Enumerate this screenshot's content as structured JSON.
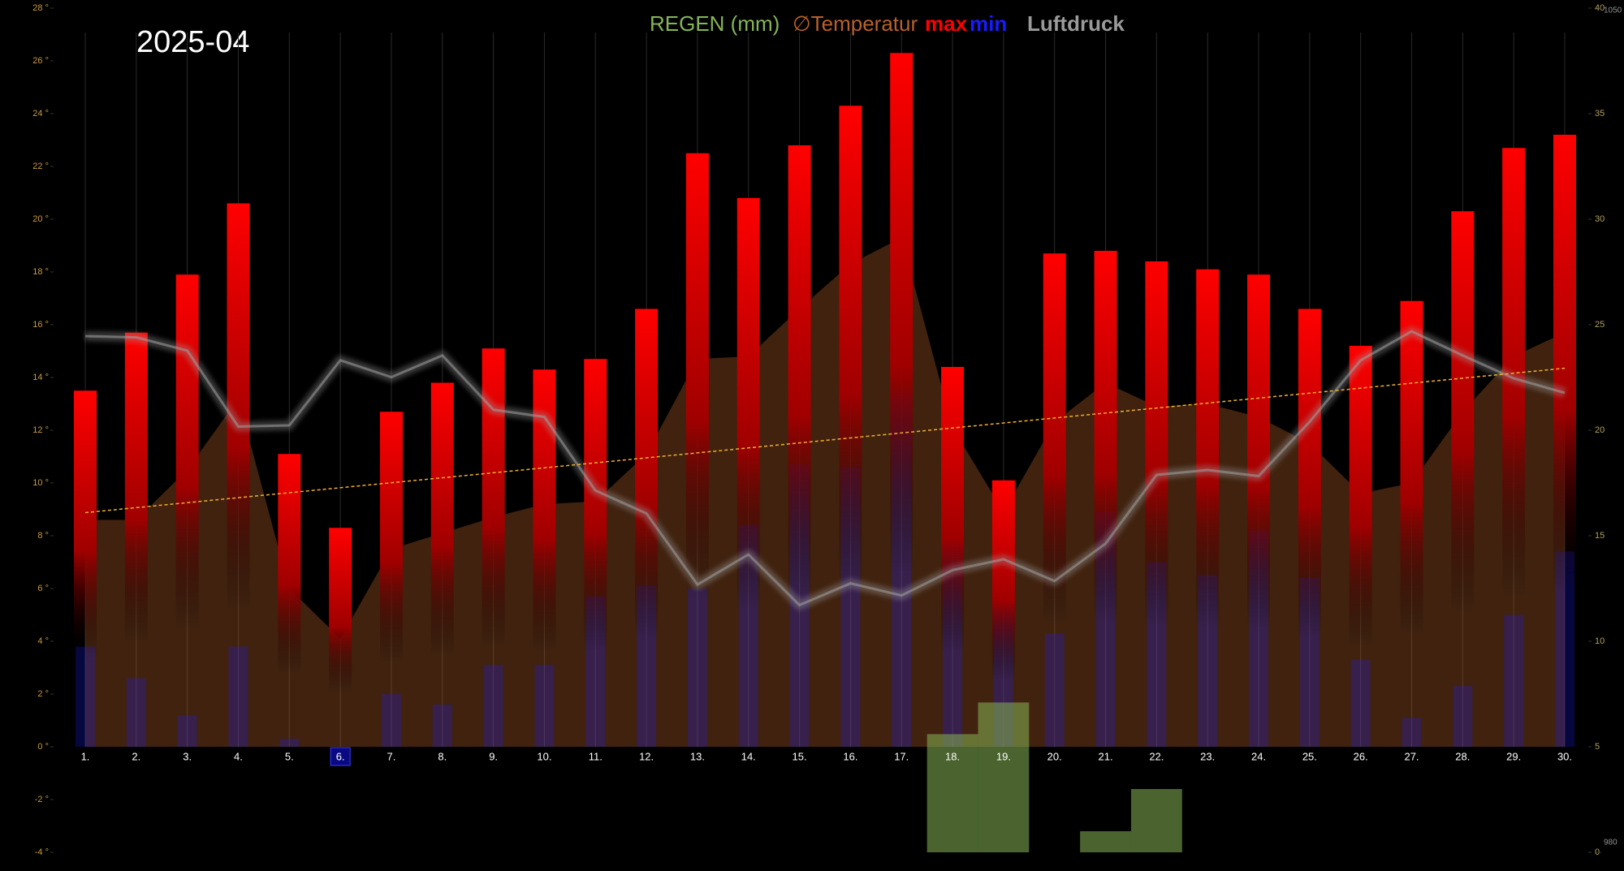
{
  "chart_data": {
    "type": "weather-combo",
    "title": "2025-04",
    "categories": [
      "1.",
      "2.",
      "3.",
      "4.",
      "5.",
      "6.",
      "7.",
      "8.",
      "9.",
      "10.",
      "11.",
      "12.",
      "13.",
      "14.",
      "15.",
      "16.",
      "17.",
      "18.",
      "19.",
      "20.",
      "21.",
      "22.",
      "23.",
      "24.",
      "25.",
      "26.",
      "27.",
      "28.",
      "29.",
      "30."
    ],
    "highlight_index": 5,
    "series": [
      {
        "name": "REGEN (mm)",
        "kind": "bar",
        "axis": "y2",
        "color": "#86b556",
        "values": [
          0,
          0,
          0,
          0,
          0,
          0,
          0,
          0,
          0,
          0,
          0,
          0,
          0,
          0,
          0,
          0,
          0,
          5.6,
          7.1,
          0,
          1.0,
          3.0,
          0,
          0,
          0,
          0,
          0,
          0,
          0,
          0
        ]
      },
      {
        "name": "∅Temperatur",
        "kind": "area",
        "color": "#b8602c",
        "values": [
          8.6,
          8.6,
          10.5,
          13.2,
          6.0,
          4.1,
          7.5,
          8.1,
          8.7,
          9.2,
          9.3,
          11.1,
          14.7,
          14.8,
          16.6,
          18.3,
          19.3,
          12.1,
          8.9,
          12.3,
          13.8,
          12.9,
          13.0,
          12.5,
          11.5,
          9.6,
          10.0,
          12.7,
          14.8,
          15.7
        ]
      },
      {
        "name": "max",
        "kind": "maxbar",
        "color": "#ff0000",
        "values": [
          13.5,
          15.7,
          17.9,
          20.6,
          11.1,
          8.3,
          12.7,
          13.8,
          15.1,
          14.3,
          14.7,
          16.6,
          22.5,
          20.8,
          22.8,
          24.3,
          26.3,
          14.4,
          10.1,
          18.7,
          18.8,
          18.4,
          18.1,
          17.9,
          16.6,
          15.2,
          16.9,
          20.3,
          22.7,
          23.2
        ]
      },
      {
        "name": "min",
        "kind": "minbar",
        "color": "#1a1aff",
        "values": [
          3.8,
          2.6,
          1.2,
          3.8,
          0.3,
          0,
          2.0,
          1.6,
          3.1,
          3.1,
          5.7,
          6.1,
          6.0,
          8.4,
          10.7,
          10.6,
          13.5,
          8.5,
          6.0,
          4.3,
          8.9,
          7.0,
          6.5,
          8.2,
          6.4,
          3.3,
          1.1,
          2.3,
          5.0,
          7.4
        ]
      },
      {
        "name": "Luftdruck",
        "kind": "line",
        "axis": "y3",
        "color": "#a0a0a0",
        "values": [
          1022.8,
          1022.7,
          1021.6,
          1015.3,
          1015.4,
          1020.8,
          1019.4,
          1021.2,
          1016.7,
          1016.1,
          1010.0,
          1008.1,
          1002.2,
          1004.7,
          1000.5,
          1002.3,
          1001.3,
          1003.4,
          1004.3,
          1002.5,
          1005.6,
          1011.3,
          1011.7,
          1011.2,
          1015.7,
          1020.8,
          1023.2,
          1021.2,
          1019.3,
          1018.1
        ]
      }
    ],
    "ylim": [
      -4,
      28
    ],
    "yticks": [
      {
        "value": -4,
        "label": "-4 °"
      },
      {
        "value": -2,
        "label": "-2 °"
      },
      {
        "value": 0,
        "label": "0 °"
      },
      {
        "value": 2,
        "label": "2 °"
      },
      {
        "value": 4,
        "label": "4 °"
      },
      {
        "value": 6,
        "label": "6 °"
      },
      {
        "value": 8,
        "label": "8 °"
      },
      {
        "value": 10,
        "label": "10 °"
      },
      {
        "value": 12,
        "label": "12 °"
      },
      {
        "value": 14,
        "label": "14 °"
      },
      {
        "value": 16,
        "label": "16 °"
      },
      {
        "value": 18,
        "label": "18 °"
      },
      {
        "value": 20,
        "label": "20 °"
      },
      {
        "value": 22,
        "label": "22 °"
      },
      {
        "value": 24,
        "label": "24 °"
      },
      {
        "value": 26,
        "label": "26 °"
      },
      {
        "value": 28,
        "label": "28 °"
      }
    ],
    "y2lim": [
      0,
      40
    ],
    "y2ticks": [
      0,
      5,
      10,
      15,
      20,
      25,
      30,
      35,
      40
    ],
    "y3lim": [
      980,
      1050
    ],
    "y3ticks": [
      980,
      1050
    ],
    "trend": true
  }
}
